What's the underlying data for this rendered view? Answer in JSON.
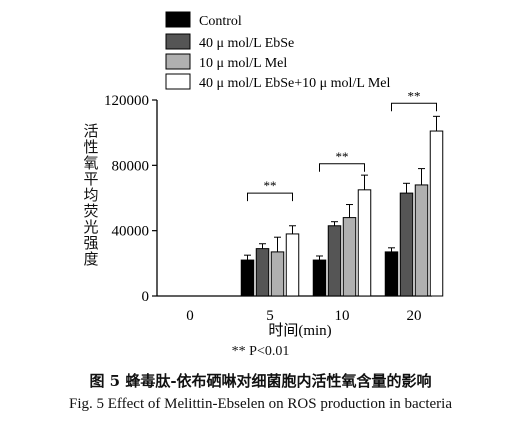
{
  "chart_data": {
    "type": "bar",
    "title": "",
    "ylabel": "活性氧平均荧光强度",
    "xlabel": "时间(min)",
    "ylim": [
      0,
      120000
    ],
    "yticks": [
      "0",
      "40000",
      "80000",
      "120000"
    ],
    "ytick_values": [
      0,
      40000,
      80000,
      120000
    ],
    "categories": [
      "0",
      "5",
      "10",
      "20"
    ],
    "legend_position": "top",
    "series": [
      {
        "name": "Control",
        "color": "#000000",
        "values": [
          0,
          22000,
          22000,
          27000
        ],
        "errors": [
          0,
          3000,
          2500,
          2500
        ]
      },
      {
        "name": "40 μ mol/L EbSe",
        "color": "#555555",
        "values": [
          0,
          29000,
          43000,
          63000
        ],
        "errors": [
          0,
          3000,
          2500,
          6000
        ]
      },
      {
        "name": "10 μ mol/L Mel",
        "color": "#b0b0b0",
        "values": [
          0,
          27000,
          48000,
          68000
        ],
        "errors": [
          0,
          9000,
          8000,
          10000
        ]
      },
      {
        "name": "40 μ mol/L EbSe+10 μ mol/L Mel",
        "color": "#ffffff",
        "values": [
          0,
          38000,
          65000,
          101000
        ],
        "errors": [
          0,
          5000,
          9000,
          9000
        ]
      }
    ],
    "significance": [
      {
        "category": "5",
        "label": "**"
      },
      {
        "category": "10",
        "label": "**"
      },
      {
        "category": "20",
        "label": "**"
      }
    ]
  },
  "footnote": "** P<0.01",
  "caption_cn": "图 5   蜂毒肽-依布硒啉对细菌胞内活性氧含量的影响",
  "caption_en": "Fig. 5 Effect of Melittin-Ebselen on ROS production in bacteria"
}
